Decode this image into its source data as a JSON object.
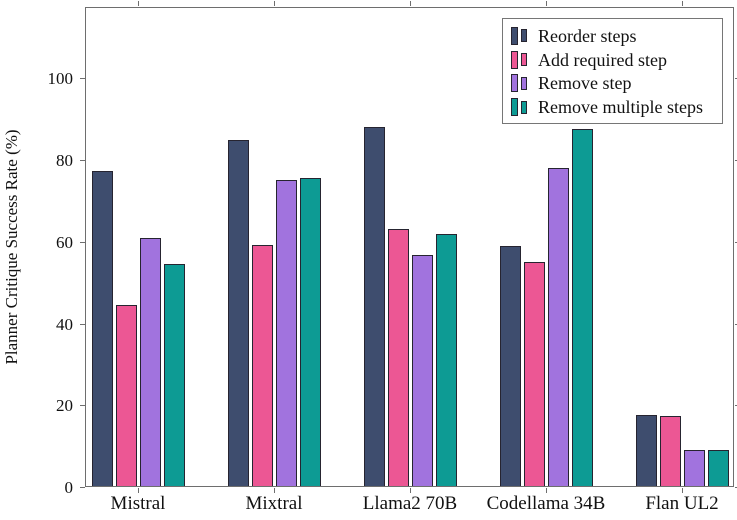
{
  "chart_data": {
    "type": "bar",
    "title": "",
    "xlabel": "",
    "ylabel": "Planner Critique Success Rate (%)",
    "categories": [
      "Mistral",
      "Mixtral",
      "Llama2 70B",
      "Codellama 34B",
      "Flan UL2"
    ],
    "series": [
      {
        "name": "Reorder steps",
        "color": "#3e4d6e",
        "values": [
          77.2,
          84.6,
          88.0,
          58.8,
          17.4
        ]
      },
      {
        "name": "Add required step",
        "color": "#ec5794",
        "values": [
          44.4,
          59.0,
          62.8,
          54.8,
          17.2
        ]
      },
      {
        "name": "Remove step",
        "color": "#a173de",
        "values": [
          60.6,
          75.0,
          56.6,
          77.8,
          8.8
        ]
      },
      {
        "name": "Remove multiple steps",
        "color": "#0d9b94",
        "values": [
          54.4,
          75.4,
          61.8,
          87.4,
          8.8
        ]
      }
    ],
    "yticks": [
      0,
      20,
      40,
      60,
      80,
      100
    ],
    "ylim": [
      0,
      117.5
    ],
    "grid": false,
    "legend_position": "top-right",
    "bar_edge_color": "#262430",
    "axis_frame_color": "#6e6e6e"
  }
}
